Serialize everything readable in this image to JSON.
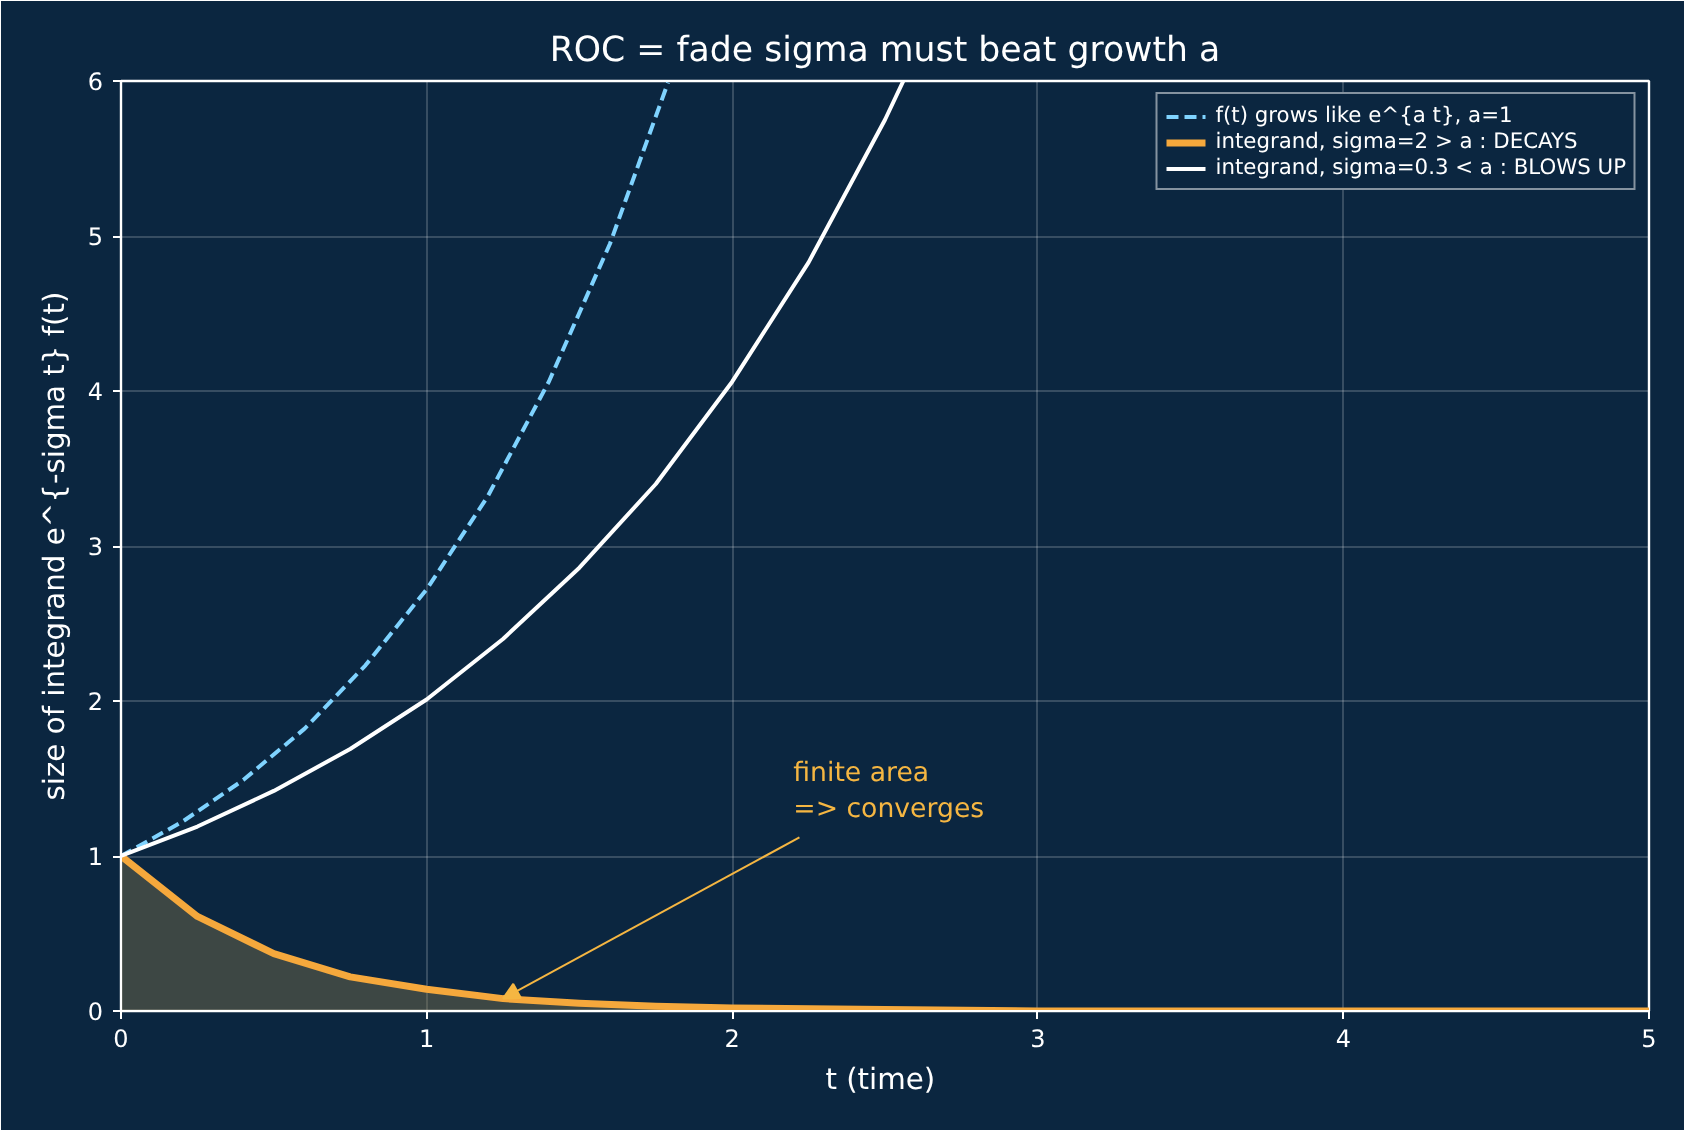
{
  "chart_data": {
    "type": "line",
    "title": "ROC = fade sigma must beat growth a",
    "xlabel": "t  (time)",
    "ylabel": "size of integrand e^{-sigma t} f(t)",
    "xlim": [
      0,
      5
    ],
    "ylim": [
      0,
      6
    ],
    "xticks": [
      0,
      1,
      2,
      3,
      4,
      5
    ],
    "yticks": [
      0,
      1,
      2,
      3,
      4,
      5,
      6
    ],
    "grid": true,
    "legend": "top right",
    "series": [
      {
        "name": "f(t) grows like e^{a t}, a=1",
        "line_style": "dashed",
        "color": "#7fd3ff",
        "x": [
          0,
          0.2,
          0.4,
          0.6,
          0.8,
          1.0,
          1.2,
          1.4,
          1.6,
          1.79
        ],
        "values": [
          1,
          1.22,
          1.49,
          1.82,
          2.23,
          2.72,
          3.32,
          4.06,
          4.95,
          5.99
        ]
      },
      {
        "name": "integrand, sigma=2 > a : DECAYS",
        "type": "area",
        "color": "#f5a83c",
        "x": [
          0,
          0.25,
          0.5,
          0.75,
          1.0,
          1.25,
          1.5,
          1.75,
          2.0,
          2.5,
          3.0,
          4.0,
          5.0
        ],
        "values": [
          1,
          0.61,
          0.37,
          0.22,
          0.14,
          0.08,
          0.05,
          0.03,
          0.02,
          0.01,
          0.0,
          0.0,
          0.0
        ]
      },
      {
        "name": "integrand, sigma=0.3 < a : BLOWS UP",
        "line_style": "solid",
        "color": "#ffffff",
        "x": [
          0,
          0.25,
          0.5,
          0.75,
          1.0,
          1.25,
          1.5,
          1.75,
          2.0,
          2.25,
          2.5,
          2.56
        ],
        "values": [
          1,
          1.19,
          1.42,
          1.69,
          2.01,
          2.4,
          2.86,
          3.4,
          4.06,
          4.83,
          5.75,
          6.0
        ]
      }
    ],
    "annotations": [
      {
        "text": "finite area\n=> converges",
        "x": 1.25,
        "y": 0.08
      }
    ]
  }
}
